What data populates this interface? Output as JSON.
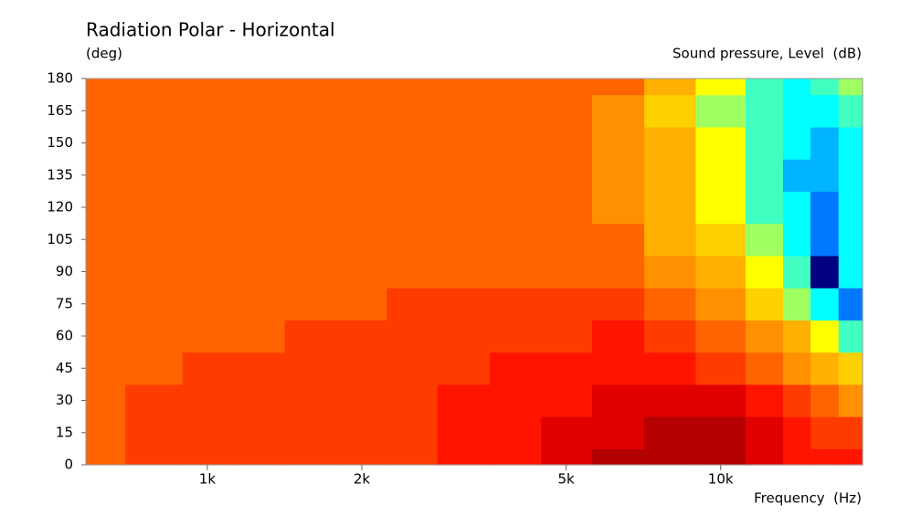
{
  "chart_data": {
    "type": "heatmap",
    "title": "Radiation Polar - Horizontal",
    "y_label": "(deg)",
    "z_label": "Sound pressure, Level  (dB)",
    "x_label": "Frequency  (Hz)",
    "x_scale": "log",
    "x": [
      600,
      800,
      1000,
      1250,
      1600,
      2000,
      2500,
      3150,
      4000,
      5000,
      6300,
      8000,
      10000,
      12500,
      14000,
      16000,
      18000
    ],
    "y": [
      0,
      15,
      30,
      45,
      60,
      75,
      90,
      105,
      120,
      135,
      150,
      165,
      180
    ],
    "z": [
      [
        0,
        3,
        3,
        3,
        3,
        3,
        3,
        6,
        6,
        9,
        12,
        12,
        12,
        9,
        6,
        6,
        6
      ],
      [
        0,
        3,
        3,
        3,
        3,
        3,
        3,
        6,
        6,
        9,
        9,
        12,
        12,
        9,
        6,
        3,
        3
      ],
      [
        0,
        3,
        3,
        3,
        3,
        3,
        3,
        6,
        6,
        6,
        9,
        9,
        9,
        6,
        3,
        0,
        -3
      ],
      [
        0,
        0,
        3,
        3,
        3,
        3,
        3,
        3,
        6,
        6,
        6,
        6,
        3,
        0,
        -3,
        -6,
        -9
      ],
      [
        0,
        0,
        0,
        0,
        3,
        3,
        3,
        3,
        3,
        3,
        6,
        3,
        0,
        -3,
        -6,
        -12,
        -18
      ],
      [
        0,
        0,
        0,
        0,
        0,
        0,
        3,
        3,
        3,
        3,
        3,
        0,
        -3,
        -9,
        -15,
        -21,
        -27
      ],
      [
        0,
        0,
        0,
        0,
        0,
        0,
        0,
        0,
        0,
        0,
        0,
        -3,
        -6,
        -12,
        -18,
        -33,
        -21
      ],
      [
        0,
        0,
        0,
        0,
        0,
        0,
        0,
        0,
        0,
        0,
        0,
        -6,
        -9,
        -15,
        -21,
        -27,
        -21
      ],
      [
        0,
        0,
        0,
        0,
        0,
        0,
        0,
        0,
        0,
        0,
        -3,
        -6,
        -12,
        -18,
        -21,
        -27,
        -21
      ],
      [
        0,
        0,
        0,
        0,
        0,
        0,
        0,
        0,
        0,
        0,
        -3,
        -6,
        -12,
        -18,
        -24,
        -24,
        -21
      ],
      [
        0,
        0,
        0,
        0,
        0,
        0,
        0,
        0,
        0,
        0,
        -3,
        -6,
        -12,
        -18,
        -21,
        -24,
        -21
      ],
      [
        0,
        0,
        0,
        0,
        0,
        0,
        0,
        0,
        0,
        0,
        -3,
        -9,
        -15,
        -18,
        -21,
        -21,
        -18
      ],
      [
        0,
        0,
        0,
        0,
        0,
        0,
        0,
        0,
        0,
        0,
        0,
        -6,
        -12,
        -18,
        -21,
        -18,
        -15
      ]
    ],
    "levels": [
      -33,
      -30,
      -27,
      -24,
      -21,
      -18,
      -15,
      -12,
      -9,
      -6,
      -3,
      0,
      3,
      6,
      9,
      12
    ],
    "colors": [
      "#000080",
      "#0030ff",
      "#0078ff",
      "#00b4ff",
      "#00ffff",
      "#40ffc0",
      "#a0ff60",
      "#ffff00",
      "#ffd000",
      "#ffb000",
      "#ff9000",
      "#ff6400",
      "#ff3c00",
      "#ff1400",
      "#e00000",
      "#b40000"
    ],
    "xlim": [
      580,
      18900
    ],
    "xticks": [
      {
        "value": 1000,
        "label": "1k"
      },
      {
        "value": 2000,
        "label": "2k"
      },
      {
        "value": 5000,
        "label": "5k"
      },
      {
        "value": 10000,
        "label": "10k"
      }
    ],
    "ylim": [
      0,
      180
    ],
    "yticks": [
      0,
      15,
      30,
      45,
      60,
      75,
      90,
      105,
      120,
      135,
      150,
      165,
      180
    ]
  }
}
